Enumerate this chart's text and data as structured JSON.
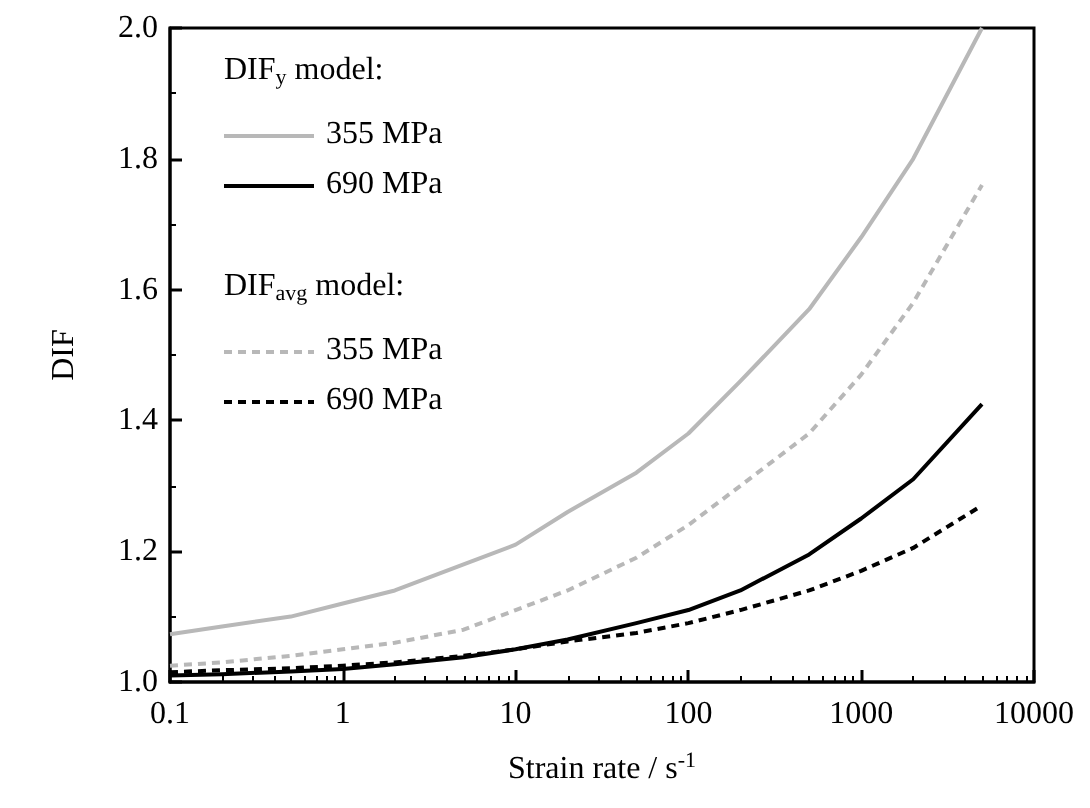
{
  "chart_data": {
    "type": "line",
    "xlabel": "Strain rate / s$^{-1}$",
    "ylabel": "DIF",
    "x": [
      0.1,
      0.2,
      0.5,
      1,
      2,
      5,
      10,
      20,
      50,
      100,
      200,
      500,
      1000,
      2000,
      5000
    ],
    "series": [
      {
        "name": "355 MPa",
        "color": "#b8b8b8",
        "line_style": "solid",
        "values": [
          1.073,
          1.085,
          1.1,
          1.12,
          1.14,
          1.18,
          1.21,
          1.26,
          1.32,
          1.38,
          1.46,
          1.57,
          1.68,
          1.8,
          2.0
        ]
      },
      {
        "name": "690 MPa",
        "color": "#000000",
        "line_style": "solid",
        "values": [
          1.01,
          1.012,
          1.016,
          1.02,
          1.027,
          1.038,
          1.05,
          1.065,
          1.09,
          1.11,
          1.14,
          1.195,
          1.25,
          1.31,
          1.425
        ]
      },
      {
        "name": "355 MPa",
        "color": "#b8b8b8",
        "line_style": "dashed",
        "values": [
          1.025,
          1.03,
          1.04,
          1.05,
          1.06,
          1.08,
          1.11,
          1.14,
          1.19,
          1.24,
          1.3,
          1.38,
          1.47,
          1.58,
          1.76
        ]
      },
      {
        "name": "690 MPa",
        "color": "#000000",
        "line_style": "dashed",
        "values": [
          1.015,
          1.018,
          1.021,
          1.025,
          1.03,
          1.04,
          1.05,
          1.062,
          1.075,
          1.09,
          1.11,
          1.14,
          1.17,
          1.205,
          1.27
        ]
      }
    ],
    "annotations": [
      "DIF$_{y}$ model:",
      "DIF$_{avg}$ model:"
    ],
    "log": "x",
    "marker": "none",
    "grid": false,
    "legend": "top left",
    "xlim": [
      0.1,
      10000
    ],
    "xticks": [
      0.1,
      1,
      10,
      100,
      1000,
      10000
    ],
    "ylim": [
      1.0,
      2.0
    ],
    "yticks": [
      {
        "value": 1.0,
        "label": "1.0"
      },
      {
        "value": 1.2,
        "label": "1.2"
      },
      {
        "value": 1.4,
        "label": "1.4"
      },
      {
        "value": 1.6,
        "label": "1.6"
      },
      {
        "value": 1.8,
        "label": "1.8"
      },
      {
        "value": 2.0,
        "label": "2.0"
      }
    ]
  }
}
